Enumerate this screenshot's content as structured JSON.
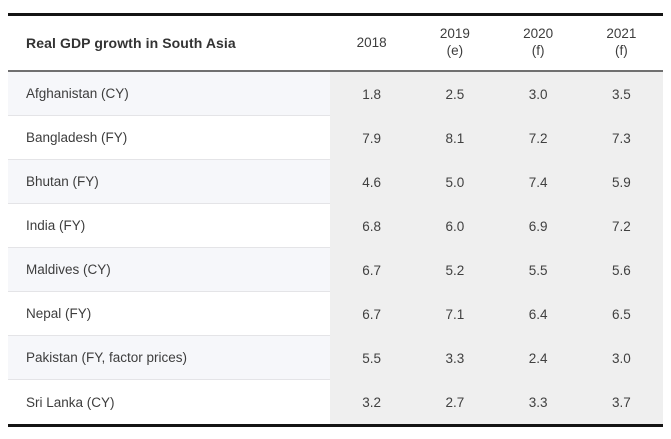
{
  "chart_data": {
    "type": "table",
    "title": "Real GDP growth in South Asia",
    "unit": "percent",
    "columns": [
      {
        "year": "2018",
        "note": ""
      },
      {
        "year": "2019",
        "note": "(e)"
      },
      {
        "year": "2020",
        "note": "(f)"
      },
      {
        "year": "2021",
        "note": "(f)"
      }
    ],
    "rows": [
      {
        "country": "Afghanistan (CY)",
        "values": [
          "1.8",
          "2.5",
          "3.0",
          "3.5"
        ]
      },
      {
        "country": "Bangladesh (FY)",
        "values": [
          "7.9",
          "8.1",
          "7.2",
          "7.3"
        ]
      },
      {
        "country": "Bhutan (FY)",
        "values": [
          "4.6",
          "5.0",
          "7.4",
          "5.9"
        ]
      },
      {
        "country": "India (FY)",
        "values": [
          "6.8",
          "6.0",
          "6.9",
          "7.2"
        ]
      },
      {
        "country": "Maldives (CY)",
        "values": [
          "6.7",
          "5.2",
          "5.5",
          "5.6"
        ]
      },
      {
        "country": "Nepal (FY)",
        "values": [
          "6.7",
          "7.1",
          "6.4",
          "6.5"
        ]
      },
      {
        "country": "Pakistan (FY, factor prices)",
        "values": [
          "5.5",
          "3.3",
          "2.4",
          "3.0"
        ]
      },
      {
        "country": "Sri Lanka (CY)",
        "values": [
          "3.2",
          "2.7",
          "3.3",
          "3.7"
        ]
      }
    ],
    "colors": {
      "border_heavy": "#141414",
      "header_separator": "#707070",
      "label_col_alt_bg": "#f6f7fa",
      "data_col_bg": "#efefef",
      "text": "#3d3d3d"
    },
    "layout": {
      "grid": "off",
      "legend": "none"
    }
  }
}
